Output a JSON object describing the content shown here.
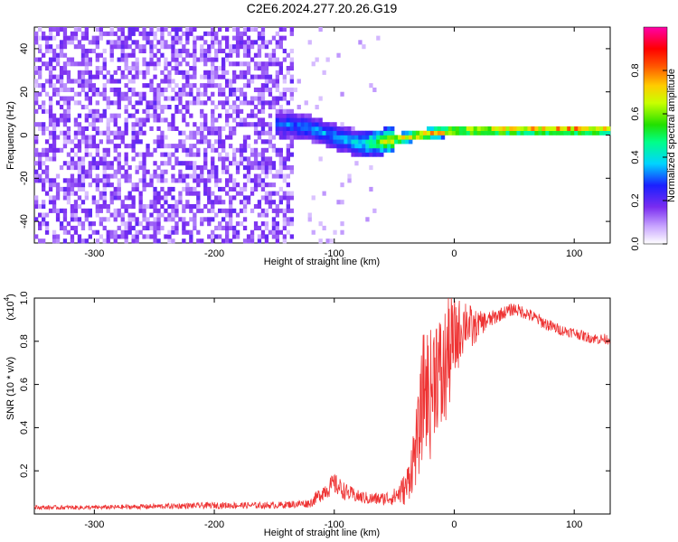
{
  "figure": {
    "title": "C2E6.2024.277.20.26.G19"
  },
  "chart_data": [
    {
      "type": "heatmap",
      "title": "C2E6.2024.277.20.26.G19",
      "xlabel": "Height of straight line (km)",
      "ylabel": "Frequency (Hz)",
      "xlim": [
        -350,
        130
      ],
      "ylim": [
        -50,
        50
      ],
      "xticks": [
        -300,
        -200,
        -100,
        0,
        100
      ],
      "yticks": [
        -40,
        -20,
        0,
        20,
        40
      ],
      "colorbar": {
        "label": "Normalized spectral amplitude",
        "range": [
          0.0,
          1.0
        ],
        "ticks": [
          0.0,
          0.2,
          0.4,
          0.6,
          0.8
        ],
        "colormap": "white-purple-blue-cyan-green-yellow-red-magenta"
      },
      "ridge": {
        "description_values": "dominant frequency (Hz) vs height (km)",
        "x": [
          -140,
          -120,
          -100,
          -80,
          -60,
          -40,
          -20,
          0,
          50,
          100,
          130
        ],
        "y": [
          4,
          2,
          -2,
          -5,
          -4,
          -2,
          0,
          1,
          1.5,
          1.5,
          1.5
        ],
        "amplitude": [
          0.35,
          0.4,
          0.4,
          0.45,
          0.7,
          0.85,
          0.9,
          0.85,
          0.9,
          0.95,
          0.9
        ]
      },
      "noise_region_x": [
        -350,
        -135
      ],
      "colors": {
        "high": "#ff0000",
        "mid": "#00ffaa",
        "low": "#5a1dd6"
      }
    },
    {
      "type": "line",
      "xlabel": "Height of straight line (km)",
      "ylabel": "SNR (10 * v/v)",
      "ylabel_multiplier_base": "(x10",
      "ylabel_multiplier_exp": "4",
      "ylabel_multiplier_close": ")",
      "xlim": [
        -350,
        130
      ],
      "ylim": [
        0,
        1.0
      ],
      "xticks": [
        -300,
        -200,
        -100,
        0,
        100
      ],
      "yticks": [
        0.2,
        0.4,
        0.6,
        0.8,
        1.0
      ],
      "ytick_labels": [
        "0.2",
        "0.4",
        "0.6",
        "0.8",
        "1.0"
      ],
      "series_color": "#ee3333",
      "series": [
        {
          "x": [
            -350,
            -300,
            -250,
            -200,
            -150,
            -120,
            -110,
            -100,
            -90,
            -80,
            -70,
            -60,
            -50,
            -40,
            -30,
            -25,
            -20,
            -15,
            -10,
            -5,
            0,
            5,
            10,
            15,
            20,
            30,
            40,
            50,
            60,
            70,
            80,
            90,
            100,
            110,
            120,
            130
          ],
          "y": [
            0.03,
            0.03,
            0.035,
            0.04,
            0.04,
            0.05,
            0.1,
            0.14,
            0.1,
            0.08,
            0.07,
            0.07,
            0.08,
            0.12,
            0.35,
            0.6,
            0.55,
            0.7,
            0.6,
            0.75,
            0.8,
            0.85,
            0.9,
            0.85,
            0.88,
            0.9,
            0.93,
            0.95,
            0.93,
            0.9,
            0.87,
            0.85,
            0.84,
            0.82,
            0.81,
            0.81
          ],
          "spread": [
            0.01,
            0.01,
            0.012,
            0.015,
            0.015,
            0.02,
            0.04,
            0.05,
            0.04,
            0.03,
            0.03,
            0.03,
            0.04,
            0.08,
            0.2,
            0.3,
            0.3,
            0.3,
            0.3,
            0.3,
            0.2,
            0.15,
            0.12,
            0.1,
            0.06,
            0.04,
            0.03,
            0.03,
            0.03,
            0.03,
            0.03,
            0.025,
            0.025,
            0.025,
            0.025,
            0.025
          ]
        }
      ]
    }
  ]
}
